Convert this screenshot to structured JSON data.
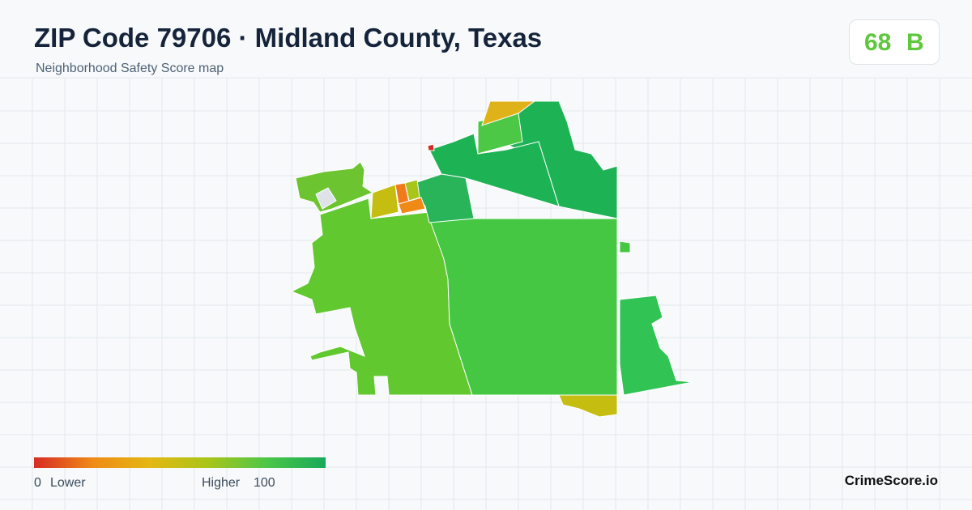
{
  "header": {
    "title": "ZIP Code 79706 · Midland County, Texas",
    "subtitle": "Neighborhood Safety Score map"
  },
  "score": {
    "value": 68,
    "grade": "B"
  },
  "legend": {
    "min": 0,
    "min_label": "Lower",
    "max_label": "Higher",
    "max": 100
  },
  "brand": "CrimeScore.io"
}
